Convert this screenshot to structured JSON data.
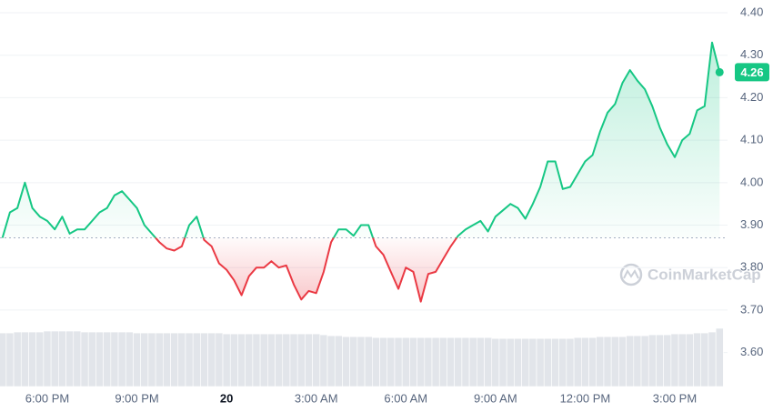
{
  "chart_data": {
    "type": "line",
    "values": [
      3.87,
      3.93,
      3.94,
      4.0,
      3.94,
      3.92,
      3.91,
      3.89,
      3.92,
      3.88,
      3.89,
      3.89,
      3.91,
      3.93,
      3.94,
      3.97,
      3.98,
      3.96,
      3.94,
      3.9,
      3.88,
      3.86,
      3.845,
      3.84,
      3.85,
      3.9,
      3.92,
      3.865,
      3.85,
      3.81,
      3.795,
      3.77,
      3.735,
      3.78,
      3.8,
      3.8,
      3.815,
      3.8,
      3.805,
      3.76,
      3.725,
      3.745,
      3.74,
      3.79,
      3.86,
      3.89,
      3.89,
      3.875,
      3.9,
      3.9,
      3.85,
      3.83,
      3.79,
      3.75,
      3.8,
      3.79,
      3.72,
      3.785,
      3.79,
      3.82,
      3.85,
      3.875,
      3.89,
      3.9,
      3.91,
      3.885,
      3.92,
      3.935,
      3.95,
      3.94,
      3.915,
      3.95,
      3.99,
      4.05,
      4.05,
      3.985,
      3.99,
      4.02,
      4.05,
      4.065,
      4.12,
      4.165,
      4.185,
      4.235,
      4.265,
      4.24,
      4.22,
      4.18,
      4.13,
      4.09,
      4.06,
      4.1,
      4.115,
      4.17,
      4.18,
      4.33,
      4.26
    ],
    "volume": [
      58,
      58,
      59,
      59,
      59,
      59,
      60,
      60,
      60,
      60,
      60,
      59,
      59,
      59,
      59,
      59,
      59,
      59,
      58,
      58,
      58,
      58,
      58,
      58,
      58,
      58,
      58,
      58,
      58,
      58,
      57,
      57,
      57,
      57,
      57,
      57,
      57,
      57,
      57,
      57,
      57,
      57,
      57,
      56,
      55,
      55,
      54,
      54,
      54,
      54,
      53,
      53,
      53,
      53,
      53,
      53,
      53,
      53,
      53,
      53,
      53,
      53,
      53,
      53,
      53,
      53,
      52,
      52,
      52,
      52,
      52,
      52,
      52,
      52,
      52,
      52,
      52,
      53,
      53,
      53,
      54,
      54,
      54,
      54,
      55,
      55,
      55,
      56,
      56,
      56,
      57,
      57,
      57,
      58,
      58,
      59,
      63
    ],
    "baseline": 3.87,
    "last_price": 4.26,
    "up_color": "#16c784",
    "down_color": "#ea3943",
    "volume_color": "#e2e5ea",
    "ylim": [
      3.52,
      4.43
    ],
    "yticks": [
      {
        "value": 3.6,
        "label": "3.60"
      },
      {
        "value": 3.7,
        "label": "3.70"
      },
      {
        "value": 3.8,
        "label": "3.80"
      },
      {
        "value": 3.9,
        "label": "3.90"
      },
      {
        "value": 4.0,
        "label": "4.00"
      },
      {
        "value": 4.1,
        "label": "4.10"
      },
      {
        "value": 4.2,
        "label": "4.20"
      },
      {
        "value": 4.3,
        "label": "4.30"
      },
      {
        "value": 4.4,
        "label": "4.40"
      }
    ],
    "xticks": [
      {
        "value": 6,
        "label": "6:00 PM"
      },
      {
        "value": 18,
        "label": "9:00 PM"
      },
      {
        "value": 30,
        "label": "20"
      },
      {
        "value": 42,
        "label": "3:00 AM"
      },
      {
        "value": 54,
        "label": "6:00 AM"
      },
      {
        "value": 66,
        "label": "9:00 AM"
      },
      {
        "value": 78,
        "label": "12:00 PM"
      },
      {
        "value": 90,
        "label": "3:00 PM"
      }
    ],
    "grid": true,
    "watermark": "CoinMarketCap"
  }
}
